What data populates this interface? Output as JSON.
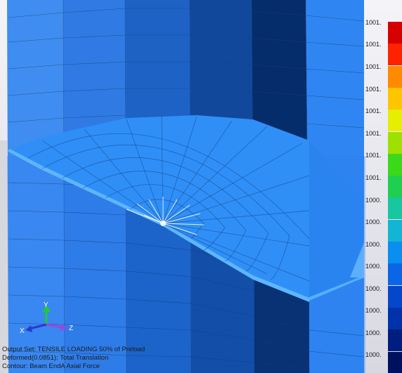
{
  "legend": {
    "labels": [
      "1001.",
      "1001.",
      "1001.",
      "1001.",
      "1001.",
      "1001.",
      "1001.",
      "1001.",
      "1000.",
      "1000.",
      "1000.",
      "1000.",
      "1000.",
      "1000.",
      "1000.",
      "1000."
    ],
    "colors": [
      "#d60000",
      "#ff2200",
      "#ff8a00",
      "#ffc600",
      "#e6ef00",
      "#9ee000",
      "#3bd91a",
      "#1fcf4f",
      "#17c7a0",
      "#12b6d4",
      "#0a8ef0",
      "#0a66e6",
      "#0547cc",
      "#0132aa",
      "#001d80",
      "#001060"
    ]
  },
  "triad": {
    "x_label": "X",
    "y_label": "Y",
    "z_label": "Z"
  },
  "info": {
    "line1": "Output Set: TENSILE LOADING 50% of Preload",
    "line2": "Deformed(0.0851): Total Translation",
    "line3": "Contour: Beam EndA Axial Force"
  }
}
